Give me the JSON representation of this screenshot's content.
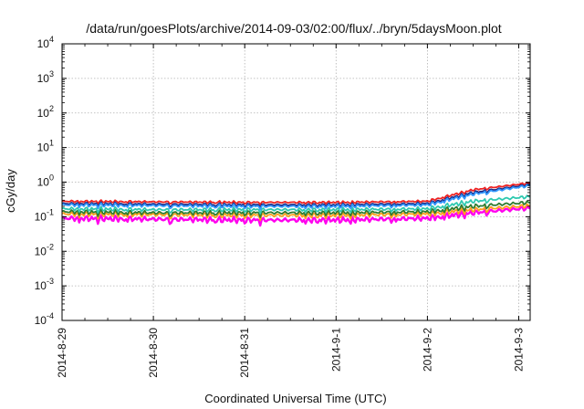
{
  "chart_data": {
    "type": "line",
    "title": "/data/run/goesPlots/archive/2014-09-03/02:00/flux/../bryn/5daysMoon.plot",
    "xlabel": "Coordinated Universal Time (UTC)",
    "ylabel": "cGy/day",
    "yscale": "log",
    "ylim": [
      0.0001,
      10000
    ],
    "y_ticks": [
      {
        "base": "10",
        "exp": "-4",
        "value": 0.0001
      },
      {
        "base": "10",
        "exp": "-3",
        "value": 0.001
      },
      {
        "base": "10",
        "exp": "-2",
        "value": 0.01
      },
      {
        "base": "10",
        "exp": "-1",
        "value": 0.1
      },
      {
        "base": "10",
        "exp": "0",
        "value": 1
      },
      {
        "base": "10",
        "exp": "1",
        "value": 10
      },
      {
        "base": "10",
        "exp": "2",
        "value": 100
      },
      {
        "base": "10",
        "exp": "3",
        "value": 1000
      },
      {
        "base": "10",
        "exp": "4",
        "value": 10000
      }
    ],
    "xlim": [
      "2014-08-29",
      "2014-09-03 03:00"
    ],
    "x_tick_labels": [
      "2014-8-29",
      "2014-8-30",
      "2014-8-31",
      "2014-9-1",
      "2014-9-2",
      "2014-9-3"
    ],
    "grid": true,
    "legend": "none",
    "series": [
      {
        "color": "#ee2222",
        "x": [
          "2014-08-29",
          "2014-08-30",
          "2014-08-31",
          "2014-09-01",
          "2014-09-02",
          "2014-09-02 12:00",
          "2014-09-03 03:00"
        ],
        "values": [
          0.28,
          0.27,
          0.26,
          0.26,
          0.28,
          0.6,
          0.95
        ]
      },
      {
        "color": "#1a237e",
        "x": [
          "2014-08-29",
          "2014-08-30",
          "2014-08-31",
          "2014-09-01",
          "2014-09-02",
          "2014-09-02 12:00",
          "2014-09-03 03:00"
        ],
        "values": [
          0.24,
          0.23,
          0.22,
          0.22,
          0.24,
          0.5,
          0.85
        ]
      },
      {
        "color": "#3399ff",
        "x": [
          "2014-08-29",
          "2014-08-30",
          "2014-08-31",
          "2014-09-01",
          "2014-09-02",
          "2014-09-02 12:00",
          "2014-09-03 03:00"
        ],
        "values": [
          0.22,
          0.21,
          0.2,
          0.2,
          0.22,
          0.45,
          0.8
        ]
      },
      {
        "color": "#2ec9b0",
        "x": [
          "2014-08-29",
          "2014-08-30",
          "2014-08-31",
          "2014-09-01",
          "2014-09-02",
          "2014-09-02 12:00",
          "2014-09-03 03:00"
        ],
        "values": [
          0.17,
          0.16,
          0.16,
          0.16,
          0.17,
          0.28,
          0.38
        ]
      },
      {
        "color": "#2e7d32",
        "x": [
          "2014-08-29",
          "2014-08-30",
          "2014-08-31",
          "2014-09-01",
          "2014-09-02",
          "2014-09-02 12:00",
          "2014-09-03 03:00"
        ],
        "values": [
          0.14,
          0.13,
          0.13,
          0.13,
          0.14,
          0.2,
          0.26
        ]
      },
      {
        "color": "#ff9f1c",
        "x": [
          "2014-08-29",
          "2014-08-30",
          "2014-08-31",
          "2014-09-01",
          "2014-09-02",
          "2014-09-02 12:00",
          "2014-09-03 03:00"
        ],
        "values": [
          0.12,
          0.115,
          0.11,
          0.11,
          0.12,
          0.16,
          0.21
        ]
      },
      {
        "color": "#ff00ee",
        "x": [
          "2014-08-29",
          "2014-08-30",
          "2014-08-31",
          "2014-09-01",
          "2014-09-02",
          "2014-09-02 12:00",
          "2014-09-03 03:00"
        ],
        "values": [
          0.09,
          0.085,
          0.08,
          0.08,
          0.09,
          0.13,
          0.18
        ]
      }
    ]
  }
}
